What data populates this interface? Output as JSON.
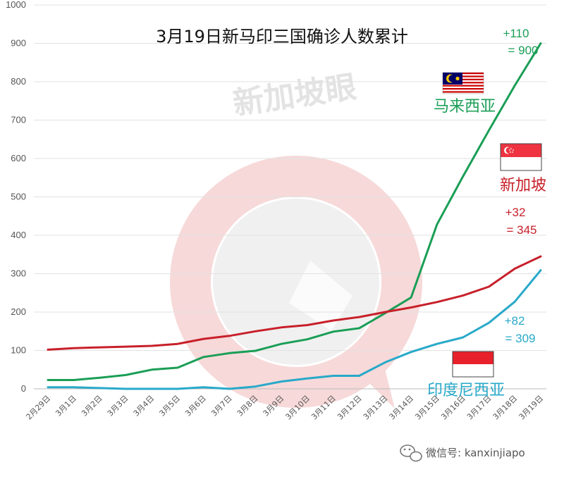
{
  "title": "3月19日新马印三国确诊人数累计",
  "watermark": "新加坡眼",
  "footer": "微信号: kanxinjiapo",
  "colors": {
    "malaysia": "#1a9e56",
    "singapore": "#c8202a",
    "indonesia": "#28a9c9"
  },
  "countries": {
    "malaysia": {
      "name": "马来西亚",
      "delta": "+110",
      "total": "= 900"
    },
    "singapore": {
      "name": "新加坡",
      "delta": "+32",
      "total": "= 345"
    },
    "indonesia": {
      "name": "印度尼西亚",
      "delta": "+82",
      "total": "= 309"
    }
  },
  "chart_data": {
    "type": "line",
    "title": "3月19日新马印三国确诊人数累计",
    "categories": [
      "2月29日",
      "3月1日",
      "3月2日",
      "3月3日",
      "3月4日",
      "3月5日",
      "3月6日",
      "3月7日",
      "3月8日",
      "3月9日",
      "3月10日",
      "3月11日",
      "3月12日",
      "3月13日",
      "3月14日",
      "3月15日",
      "3月16日",
      "3月17日",
      "3月18日",
      "3月19日"
    ],
    "ylim": [
      0,
      1000
    ],
    "yticks": [
      0,
      100,
      200,
      300,
      400,
      500,
      600,
      700,
      800,
      900,
      1000
    ],
    "grid": true,
    "series": [
      {
        "name": "马来西亚",
        "color": "#1a9e56",
        "values": [
          23,
          23,
          29,
          36,
          50,
          55,
          83,
          93,
          99,
          117,
          129,
          149,
          158,
          197,
          238,
          428,
          553,
          673,
          790,
          900
        ]
      },
      {
        "name": "新加坡",
        "color": "#c8202a",
        "values": [
          102,
          106,
          108,
          110,
          112,
          117,
          130,
          138,
          150,
          160,
          166,
          178,
          187,
          200,
          212,
          226,
          243,
          266,
          313,
          345
        ]
      },
      {
        "name": "印度尼西亚",
        "color": "#28a9c9",
        "values": [
          4,
          4,
          2,
          0,
          0,
          0,
          4,
          0,
          6,
          19,
          27,
          34,
          34,
          69,
          96,
          117,
          134,
          172,
          227,
          309
        ]
      }
    ]
  }
}
